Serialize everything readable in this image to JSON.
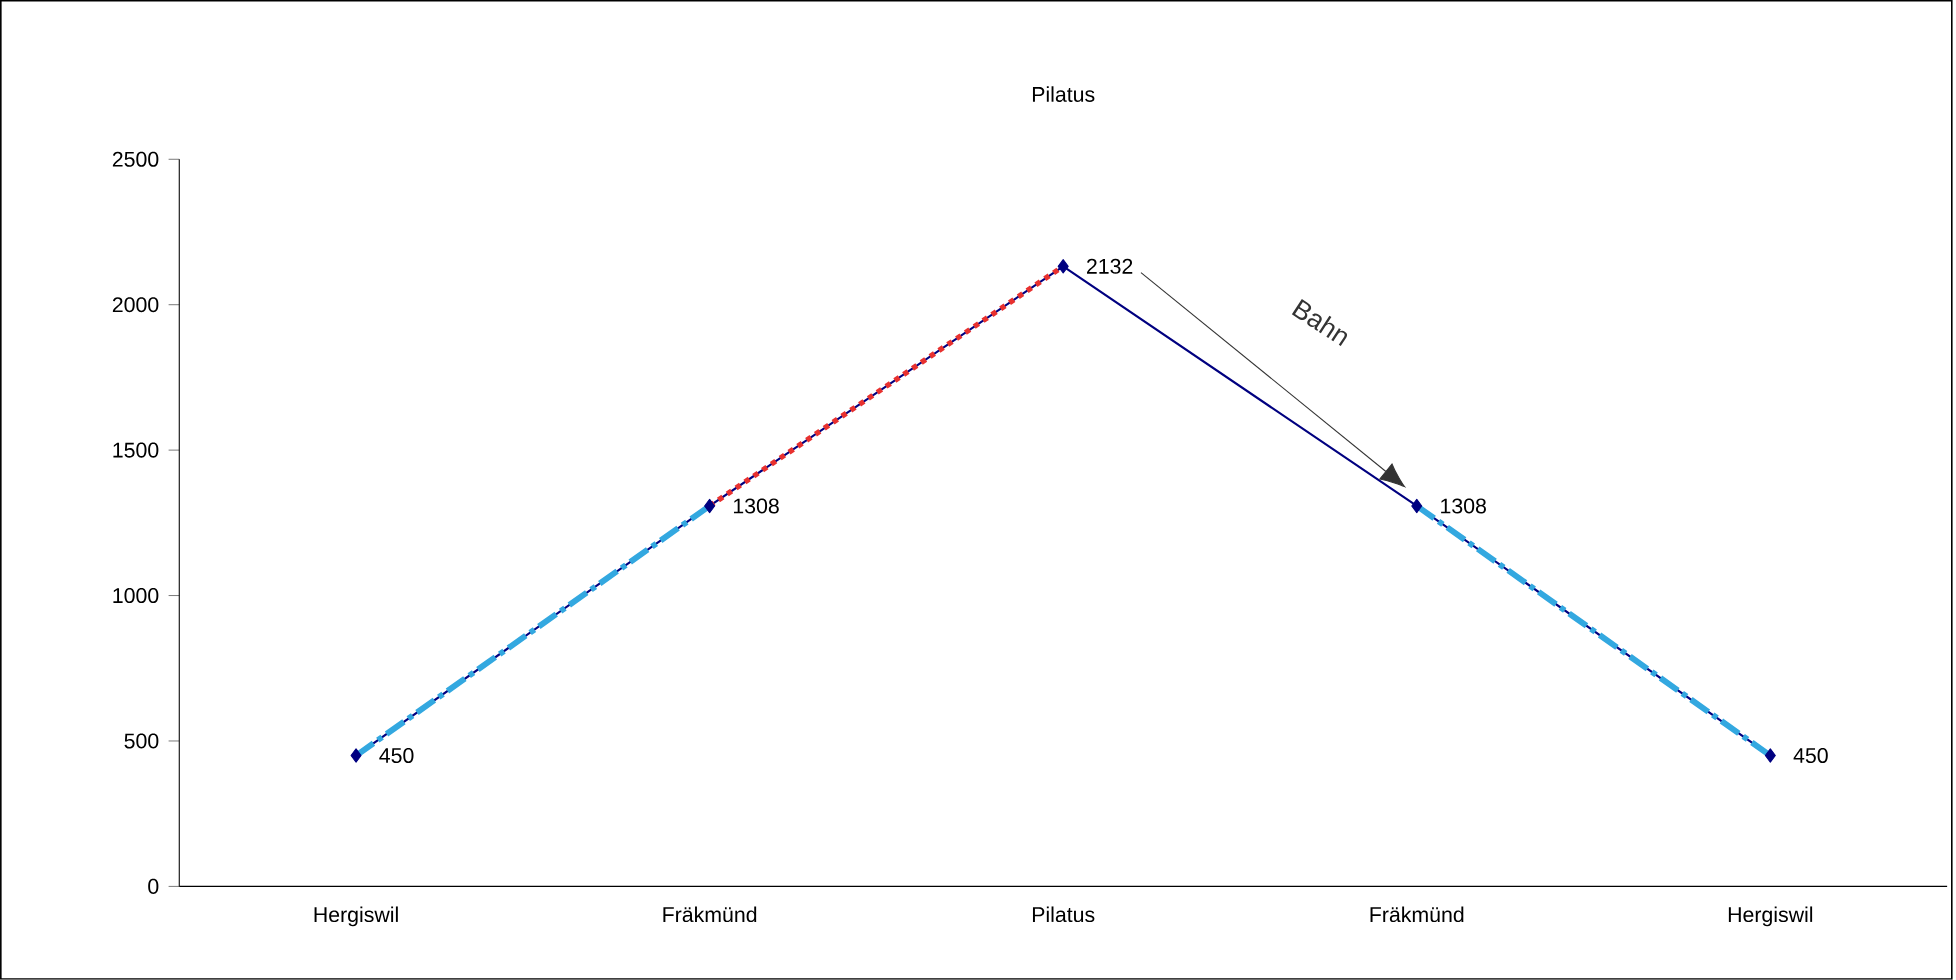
{
  "chart_data": {
    "type": "line",
    "title": "Pilatus",
    "categories": [
      "Hergiswil",
      "Fräkmünd",
      "Pilatus",
      "Fräkmünd",
      "Hergiswil"
    ],
    "series": [
      {
        "color": "#000080",
        "values": [
          450,
          1308,
          2132,
          1308,
          450
        ],
        "marker": "diamond",
        "line_style": "solid",
        "value_labels": [
          "450",
          "1308",
          "2132",
          "1308",
          "450"
        ]
      },
      {
        "color": "#33a8e0",
        "values": [
          450,
          1308,
          null,
          1308,
          450
        ],
        "marker": "none",
        "line_style": "dashed"
      },
      {
        "color": "#e8312f",
        "values": [
          null,
          1308,
          2132,
          null,
          null
        ],
        "marker": "none",
        "line_style": "dotted"
      }
    ],
    "ylim": [
      0,
      2500
    ],
    "yticks": [
      0,
      500,
      1000,
      1500,
      2000,
      2500
    ],
    "grid": false,
    "annotations": [
      "Bahn"
    ]
  }
}
